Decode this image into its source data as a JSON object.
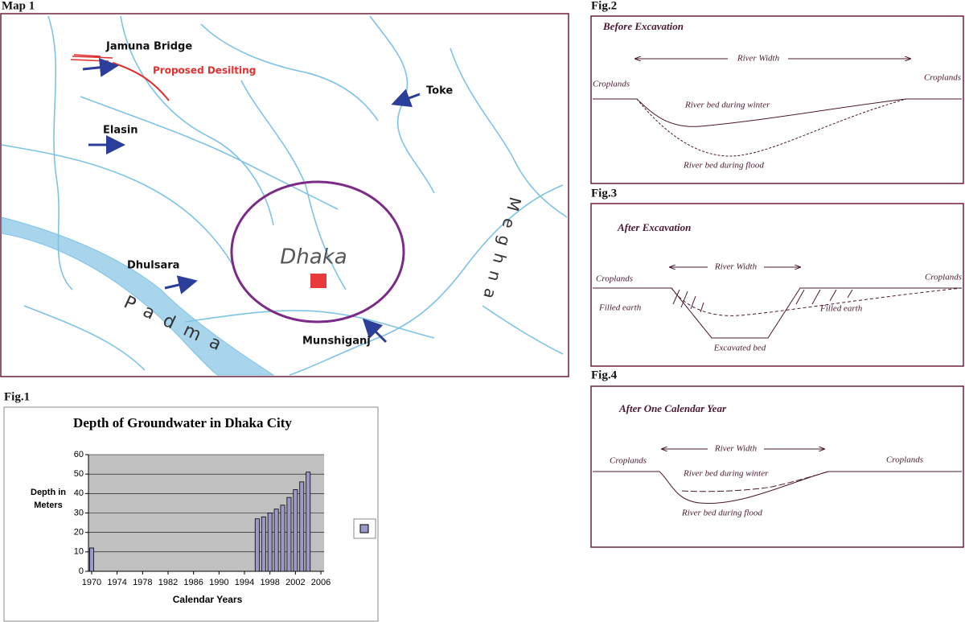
{
  "map": {
    "title": "Map 1",
    "labels": {
      "jamuna_bridge": "Jamuna Bridge",
      "proposed_desilting": "Proposed Desilting",
      "toke": "Toke",
      "elasin": "Elasin",
      "dhaka": "Dhaka",
      "dhulsara": "Dhulsara",
      "padma": "Padma",
      "munshiganj": "Munshiganj",
      "meghna": "Meghna"
    }
  },
  "fig1": {
    "title": "Fig.1"
  },
  "fig2": {
    "title": "Fig.2",
    "heading": "Before Excavation",
    "river_width": "River Width",
    "croplands_left": "Croplands",
    "croplands_right": "Croplands",
    "winter": "River bed during winter",
    "flood": "River bed during flood"
  },
  "fig3": {
    "title": "Fig.3",
    "heading": "After Excavation",
    "river_width": "River Width",
    "croplands_left": "Croplands",
    "croplands_right": "Croplands",
    "filled_left": "Filled earth",
    "filled_right": "Filled earth",
    "excavated": "Excavated bed"
  },
  "fig4": {
    "title": "Fig.4",
    "heading": "After One Calendar Year",
    "river_width": "River Width",
    "croplands_left": "Croplands",
    "croplands_right": "Croplands",
    "winter": "River bed during winter",
    "flood": "River bed during flood"
  },
  "chart_data": {
    "type": "bar",
    "title": "Depth of Groundwater in Dhaka City",
    "x_label": "Calendar Years",
    "y_label": "Depth in Meters",
    "x": [
      1970,
      1996,
      1997,
      1998,
      1999,
      2000,
      2001,
      2002,
      2003,
      2004
    ],
    "values": [
      12,
      27,
      28,
      30,
      32,
      34,
      38,
      42,
      46,
      51
    ],
    "color": "#9999cc",
    "plot_color": "#c0c0c0",
    "xlim": [
      1969.5,
      2006.5
    ],
    "xticks": [
      1970,
      1974,
      1978,
      1982,
      1986,
      1990,
      1994,
      1998,
      2002,
      2006
    ],
    "ylim": [
      0,
      60
    ],
    "yticks": [
      0,
      10,
      20,
      30,
      40,
      50,
      60
    ],
    "grid": true
  }
}
